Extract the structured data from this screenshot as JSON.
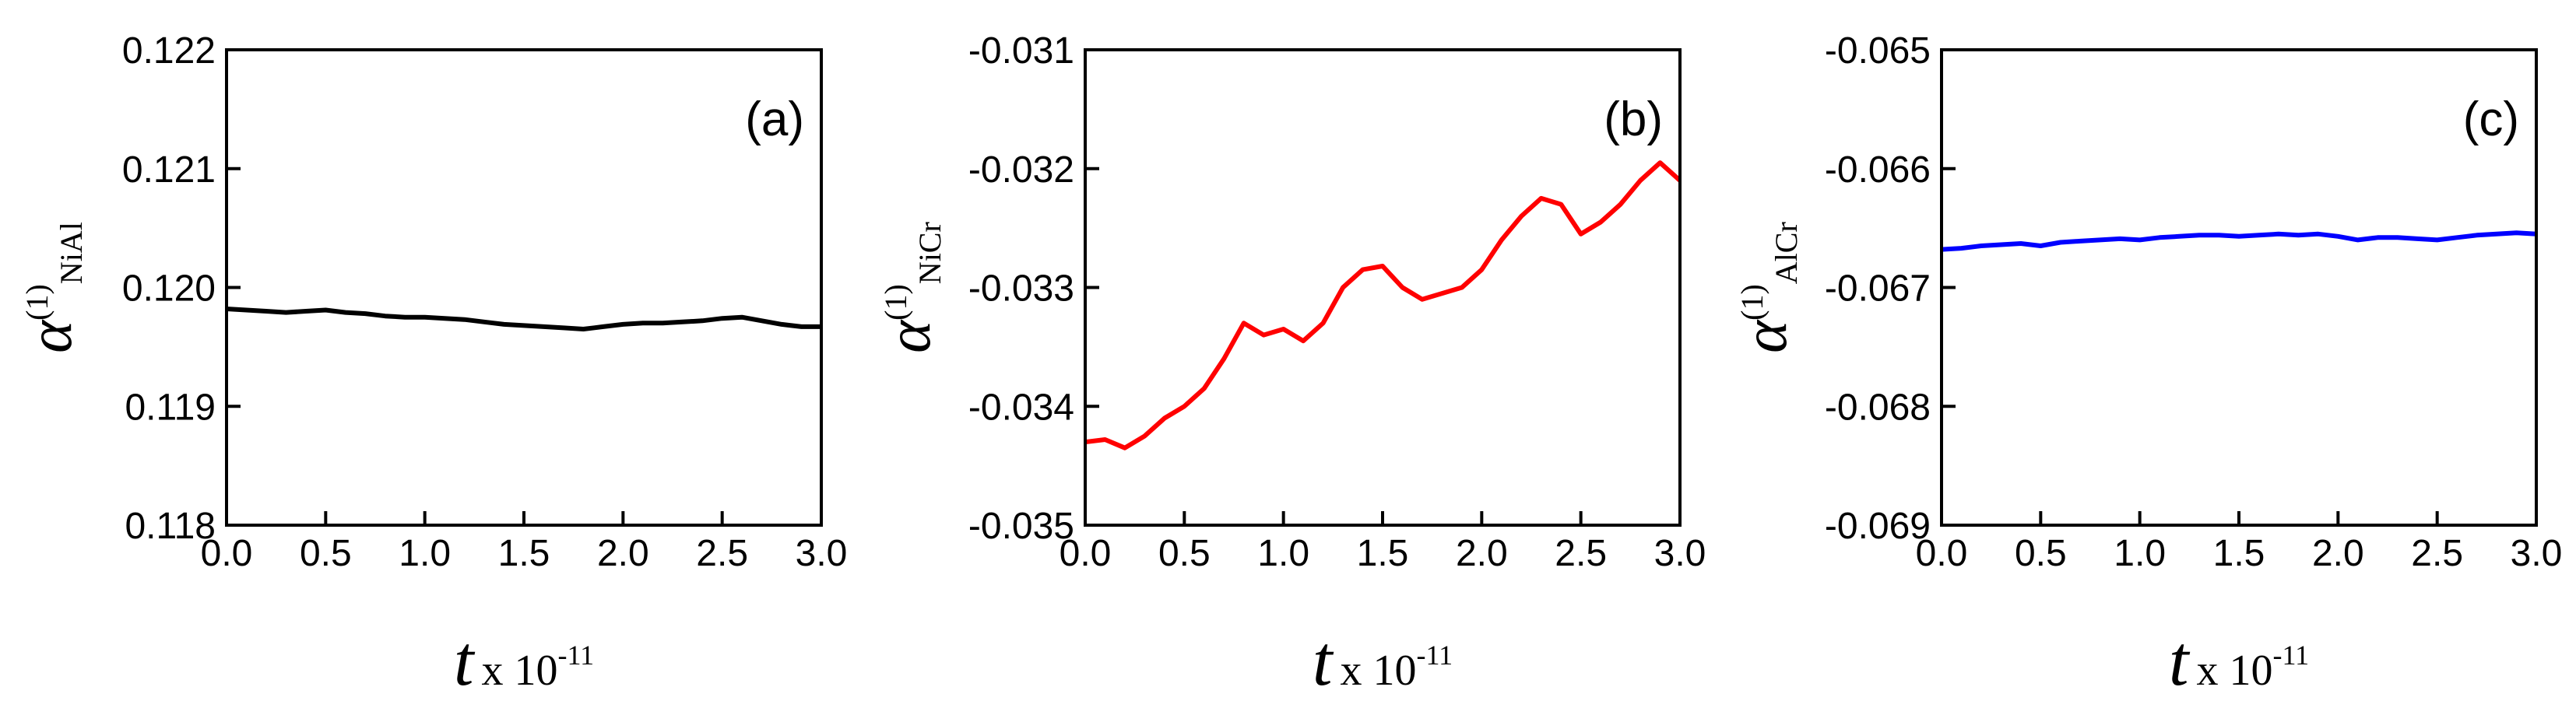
{
  "chart_data": [
    {
      "type": "line",
      "panel_label": "(a)",
      "color": "#000000",
      "ylabel_symbol": "α",
      "ylabel_sup": "(1)",
      "ylabel_sub": "NiAl",
      "xlabel_var": "t",
      "xlabel_text": "x 10",
      "xlabel_exp": "-11",
      "xlim": [
        0,
        3
      ],
      "ylim": [
        0.118,
        0.122
      ],
      "xticks": [
        {
          "value": 0,
          "label": "0.0"
        },
        0.5,
        {
          "value": 1,
          "label": "1.0"
        },
        1.5,
        {
          "value": 2,
          "label": "2.0"
        },
        2.5,
        {
          "value": 3,
          "label": "3.0"
        }
      ],
      "yticks": [
        0.118,
        0.119,
        {
          "value": 0.12,
          "label": "0.120"
        },
        0.121,
        0.122
      ],
      "x": [
        0,
        0.1,
        0.2,
        0.3,
        0.4,
        0.5,
        0.6,
        0.7,
        0.8,
        0.9,
        1.0,
        1.1,
        1.2,
        1.3,
        1.4,
        1.5,
        1.6,
        1.7,
        1.8,
        1.9,
        2.0,
        2.1,
        2.2,
        2.3,
        2.4,
        2.5,
        2.6,
        2.7,
        2.8,
        2.9,
        3.0
      ],
      "values": [
        0.11982,
        0.11981,
        0.1198,
        0.11979,
        0.1198,
        0.11981,
        0.11979,
        0.11978,
        0.11976,
        0.11975,
        0.11975,
        0.11974,
        0.11973,
        0.11971,
        0.11969,
        0.11968,
        0.11967,
        0.11966,
        0.11965,
        0.11967,
        0.11969,
        0.1197,
        0.1197,
        0.11971,
        0.11972,
        0.11974,
        0.11975,
        0.11972,
        0.11969,
        0.11967,
        0.11967
      ]
    },
    {
      "type": "line",
      "panel_label": "(b)",
      "color": "#ff0000",
      "ylabel_symbol": "α",
      "ylabel_sup": "(1)",
      "ylabel_sub": "NiCr",
      "xlabel_var": "t",
      "xlabel_text": "x 10",
      "xlabel_exp": "-11",
      "xlim": [
        0,
        3
      ],
      "ylim": [
        -0.035,
        -0.031
      ],
      "xticks": [
        {
          "value": 0,
          "label": "0.0"
        },
        0.5,
        {
          "value": 1,
          "label": "1.0"
        },
        1.5,
        {
          "value": 2,
          "label": "2.0"
        },
        2.5,
        {
          "value": 3,
          "label": "3.0"
        }
      ],
      "yticks": [
        -0.035,
        -0.034,
        -0.033,
        -0.032,
        -0.031
      ],
      "x": [
        0,
        0.1,
        0.2,
        0.3,
        0.4,
        0.5,
        0.6,
        0.7,
        0.8,
        0.9,
        1.0,
        1.1,
        1.2,
        1.3,
        1.4,
        1.5,
        1.6,
        1.7,
        1.8,
        1.9,
        2.0,
        2.1,
        2.2,
        2.3,
        2.4,
        2.5,
        2.6,
        2.7,
        2.8,
        2.9,
        3.0
      ],
      "values": [
        -0.0343,
        -0.03428,
        -0.03435,
        -0.03425,
        -0.0341,
        -0.034,
        -0.03385,
        -0.0336,
        -0.0333,
        -0.0334,
        -0.03335,
        -0.03345,
        -0.0333,
        -0.033,
        -0.03285,
        -0.03282,
        -0.033,
        -0.0331,
        -0.03305,
        -0.033,
        -0.03285,
        -0.0326,
        -0.0324,
        -0.03225,
        -0.0323,
        -0.03255,
        -0.03245,
        -0.0323,
        -0.0321,
        -0.03195,
        -0.0321
      ]
    },
    {
      "type": "line",
      "panel_label": "(c)",
      "color": "#0000ff",
      "ylabel_symbol": "α",
      "ylabel_sup": "(1)",
      "ylabel_sub": "AlCr",
      "xlabel_var": "t",
      "xlabel_text": "x 10",
      "xlabel_exp": "-11",
      "xlim": [
        0,
        3
      ],
      "ylim": [
        -0.069,
        -0.065
      ],
      "xticks": [
        {
          "value": 0,
          "label": "0.0"
        },
        0.5,
        {
          "value": 1,
          "label": "1.0"
        },
        1.5,
        {
          "value": 2,
          "label": "2.0"
        },
        2.5,
        {
          "value": 3,
          "label": "3.0"
        }
      ],
      "yticks": [
        -0.069,
        -0.068,
        -0.067,
        -0.066,
        -0.065
      ],
      "x": [
        0,
        0.1,
        0.2,
        0.3,
        0.4,
        0.5,
        0.6,
        0.7,
        0.8,
        0.9,
        1.0,
        1.1,
        1.2,
        1.3,
        1.4,
        1.5,
        1.6,
        1.7,
        1.8,
        1.9,
        2.0,
        2.1,
        2.2,
        2.3,
        2.4,
        2.5,
        2.6,
        2.7,
        2.8,
        2.9,
        3.0
      ],
      "values": [
        -0.06668,
        -0.06667,
        -0.06665,
        -0.06664,
        -0.06663,
        -0.06665,
        -0.06662,
        -0.06661,
        -0.0666,
        -0.06659,
        -0.0666,
        -0.06658,
        -0.06657,
        -0.06656,
        -0.06656,
        -0.06657,
        -0.06656,
        -0.06655,
        -0.06656,
        -0.06655,
        -0.06657,
        -0.0666,
        -0.06658,
        -0.06658,
        -0.06659,
        -0.0666,
        -0.06658,
        -0.06656,
        -0.06655,
        -0.06654,
        -0.06655
      ]
    }
  ]
}
